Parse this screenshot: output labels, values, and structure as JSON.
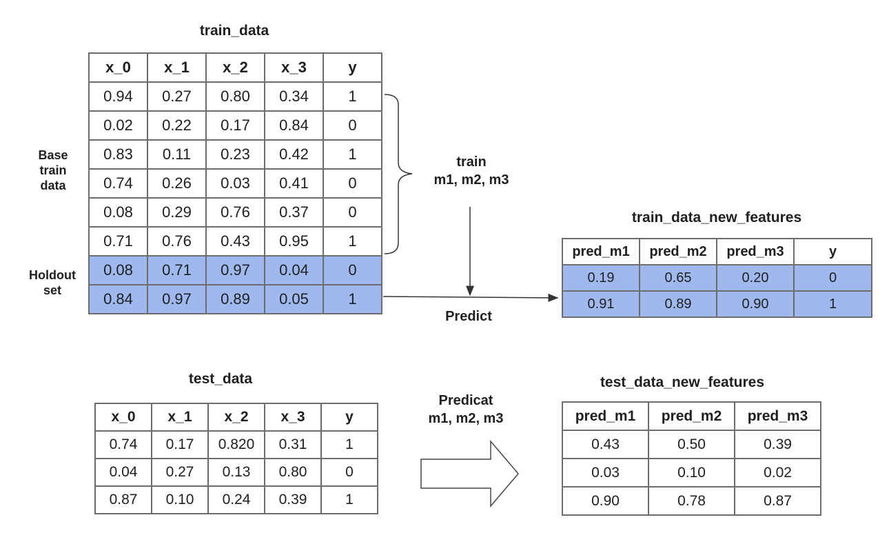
{
  "train_data": {
    "title": "train_data",
    "headers": [
      "x_0",
      "x_1",
      "x_2",
      "x_3",
      "y"
    ],
    "base_rows": [
      [
        "0.94",
        "0.27",
        "0.80",
        "0.34",
        "1"
      ],
      [
        "0.02",
        "0.22",
        "0.17",
        "0.84",
        "0"
      ],
      [
        "0.83",
        "0.11",
        "0.23",
        "0.42",
        "1"
      ],
      [
        "0.74",
        "0.26",
        "0.03",
        "0.41",
        "0"
      ],
      [
        "0.08",
        "0.29",
        "0.76",
        "0.37",
        "0"
      ],
      [
        "0.71",
        "0.76",
        "0.43",
        "0.95",
        "1"
      ]
    ],
    "holdout_rows": [
      [
        "0.08",
        "0.71",
        "0.97",
        "0.04",
        "0"
      ],
      [
        "0.84",
        "0.97",
        "0.89",
        "0.05",
        "1"
      ]
    ],
    "base_label": "Base\ntrain\ndata",
    "holdout_label": "Holdout\nset"
  },
  "train_data_new_features": {
    "title": "train_data_new_features",
    "headers": [
      "pred_m1",
      "pred_m2",
      "pred_m3",
      "y"
    ],
    "rows": [
      [
        "0.19",
        "0.65",
        "0.20",
        "0"
      ],
      [
        "0.91",
        "0.89",
        "0.90",
        "1"
      ]
    ]
  },
  "test_data": {
    "title": "test_data",
    "headers": [
      "x_0",
      "x_1",
      "x_2",
      "x_3",
      "y"
    ],
    "rows": [
      [
        "0.74",
        "0.17",
        "0.820",
        "0.31",
        "1"
      ],
      [
        "0.04",
        "0.27",
        "0.13",
        "0.80",
        "0"
      ],
      [
        "0.87",
        "0.10",
        "0.24",
        "0.39",
        "1"
      ]
    ]
  },
  "test_data_new_features": {
    "title": "test_data_new_features",
    "headers": [
      "pred_m1",
      "pred_m2",
      "pred_m3"
    ],
    "rows": [
      [
        "0.43",
        "0.50",
        "0.39"
      ],
      [
        "0.03",
        "0.10",
        "0.02"
      ],
      [
        "0.90",
        "0.78",
        "0.87"
      ]
    ]
  },
  "flow": {
    "train_label": "train\nm1, m2, m3",
    "predict_label": "Predict",
    "predicat_label": "Predicat\nm1, m2, m3"
  },
  "colors": {
    "holdout_fill": "#9fb9ee",
    "border": "#6d6d6d"
  }
}
